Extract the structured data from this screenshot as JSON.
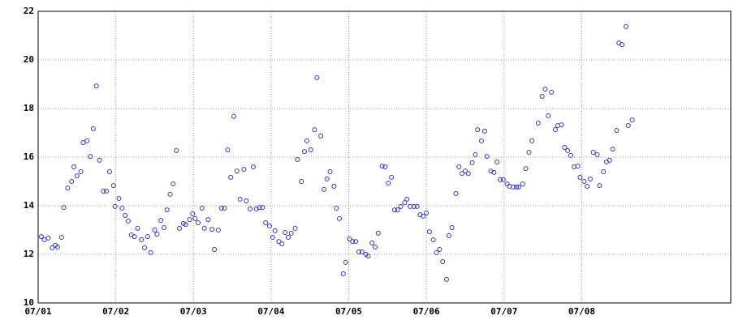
{
  "chart_data": {
    "type": "scatter",
    "x": [
      0.04,
      0.08,
      0.13,
      0.18,
      0.22,
      0.25,
      0.3,
      0.33,
      0.38,
      0.43,
      0.46,
      0.5,
      0.55,
      0.58,
      0.63,
      0.67,
      0.71,
      0.75,
      0.79,
      0.84,
      0.88,
      0.92,
      0.97,
      0.99,
      1.04,
      1.08,
      1.12,
      1.16,
      1.2,
      1.24,
      1.28,
      1.33,
      1.37,
      1.41,
      1.45,
      1.5,
      1.53,
      1.58,
      1.62,
      1.66,
      1.7,
      1.74,
      1.78,
      1.82,
      1.87,
      1.9,
      1.95,
      1.99,
      2.02,
      2.06,
      2.11,
      2.14,
      2.19,
      2.24,
      2.27,
      2.32,
      2.36,
      2.4,
      2.44,
      2.48,
      2.52,
      2.56,
      2.6,
      2.65,
      2.68,
      2.73,
      2.77,
      2.81,
      2.85,
      2.89,
      2.93,
      2.98,
      3.02,
      3.05,
      3.1,
      3.14,
      3.18,
      3.22,
      3.26,
      3.31,
      3.34,
      3.39,
      3.43,
      3.46,
      3.51,
      3.56,
      3.59,
      3.64,
      3.68,
      3.72,
      3.76,
      3.81,
      3.84,
      3.88,
      3.93,
      3.96,
      4.01,
      4.05,
      4.09,
      4.13,
      4.17,
      4.22,
      4.25,
      4.3,
      4.34,
      4.38,
      4.43,
      4.47,
      4.51,
      4.55,
      4.59,
      4.63,
      4.67,
      4.72,
      4.75,
      4.79,
      4.84,
      4.88,
      4.92,
      4.96,
      5.0,
      5.04,
      5.09,
      5.13,
      5.17,
      5.21,
      5.26,
      5.29,
      5.33,
      5.38,
      5.42,
      5.46,
      5.5,
      5.54,
      5.59,
      5.63,
      5.66,
      5.71,
      5.75,
      5.78,
      5.83,
      5.87,
      5.91,
      5.95,
      5.99,
      6.04,
      6.07,
      6.12,
      6.16,
      6.19,
      6.24,
      6.28,
      6.32,
      6.36,
      6.44,
      6.49,
      6.53,
      6.57,
      6.61,
      6.66,
      6.69,
      6.74,
      6.78,
      6.82,
      6.86,
      6.9,
      6.95,
      6.98,
      7.03,
      7.07,
      7.11,
      7.15,
      7.2,
      7.23,
      7.28,
      7.32,
      7.36,
      7.4,
      7.45,
      7.48,
      7.52,
      7.57,
      7.6,
      7.65
    ],
    "values": [
      12.73,
      12.6,
      12.67,
      12.27,
      12.37,
      12.3,
      12.7,
      13.93,
      14.73,
      15.0,
      15.6,
      15.23,
      15.4,
      16.6,
      16.67,
      16.03,
      17.17,
      18.93,
      15.87,
      14.6,
      14.6,
      15.4,
      14.83,
      13.97,
      14.3,
      13.9,
      13.6,
      13.37,
      12.8,
      12.73,
      13.07,
      12.6,
      12.27,
      12.73,
      12.07,
      13.0,
      12.83,
      13.4,
      13.1,
      13.83,
      14.47,
      14.9,
      16.27,
      13.07,
      13.27,
      13.23,
      13.43,
      13.67,
      13.47,
      13.3,
      13.9,
      13.07,
      13.43,
      13.03,
      12.2,
      13.0,
      13.9,
      13.9,
      16.3,
      15.17,
      17.67,
      15.43,
      14.27,
      15.5,
      14.2,
      13.87,
      15.6,
      13.87,
      13.93,
      13.93,
      13.3,
      13.17,
      12.7,
      12.97,
      12.53,
      12.43,
      12.9,
      12.7,
      12.87,
      13.07,
      15.9,
      15.0,
      16.23,
      16.67,
      16.3,
      17.13,
      19.27,
      16.87,
      14.67,
      15.1,
      15.4,
      14.8,
      13.9,
      13.47,
      11.2,
      11.67,
      12.63,
      12.53,
      12.53,
      12.1,
      12.1,
      12.0,
      11.93,
      12.47,
      12.3,
      12.87,
      15.63,
      15.6,
      14.93,
      15.17,
      13.83,
      13.83,
      13.97,
      14.13,
      14.27,
      13.97,
      13.97,
      13.97,
      13.63,
      13.57,
      13.7,
      12.93,
      12.6,
      12.07,
      12.2,
      11.7,
      10.97,
      12.77,
      13.1,
      14.5,
      15.6,
      15.33,
      15.43,
      15.33,
      15.77,
      16.1,
      17.13,
      16.67,
      17.07,
      16.03,
      15.43,
      15.37,
      15.8,
      15.07,
      15.07,
      14.9,
      14.8,
      14.77,
      14.77,
      14.77,
      14.9,
      15.53,
      16.2,
      16.67,
      17.4,
      18.5,
      18.8,
      17.7,
      18.67,
      17.13,
      17.3,
      17.33,
      16.4,
      16.27,
      16.07,
      15.6,
      15.63,
      15.17,
      15.0,
      14.8,
      15.1,
      16.2,
      16.1,
      14.83,
      15.4,
      15.8,
      15.87,
      16.33,
      17.1,
      20.7,
      20.63,
      21.37,
      17.3,
      17.53
    ],
    "color": "#3333cc",
    "xlim": [
      0,
      8.92
    ],
    "xticks": [
      {
        "value": 0,
        "label": "07/01"
      },
      {
        "value": 1,
        "label": "07/02"
      },
      {
        "value": 2,
        "label": "07/03"
      },
      {
        "value": 3,
        "label": "07/04"
      },
      {
        "value": 4,
        "label": "07/05"
      },
      {
        "value": 5,
        "label": "07/06"
      },
      {
        "value": 6,
        "label": "07/07"
      },
      {
        "value": 7,
        "label": "07/08"
      }
    ],
    "ylim": [
      10,
      22
    ],
    "yticks": [
      10,
      12,
      14,
      16,
      18,
      20,
      22
    ],
    "grid": true
  }
}
